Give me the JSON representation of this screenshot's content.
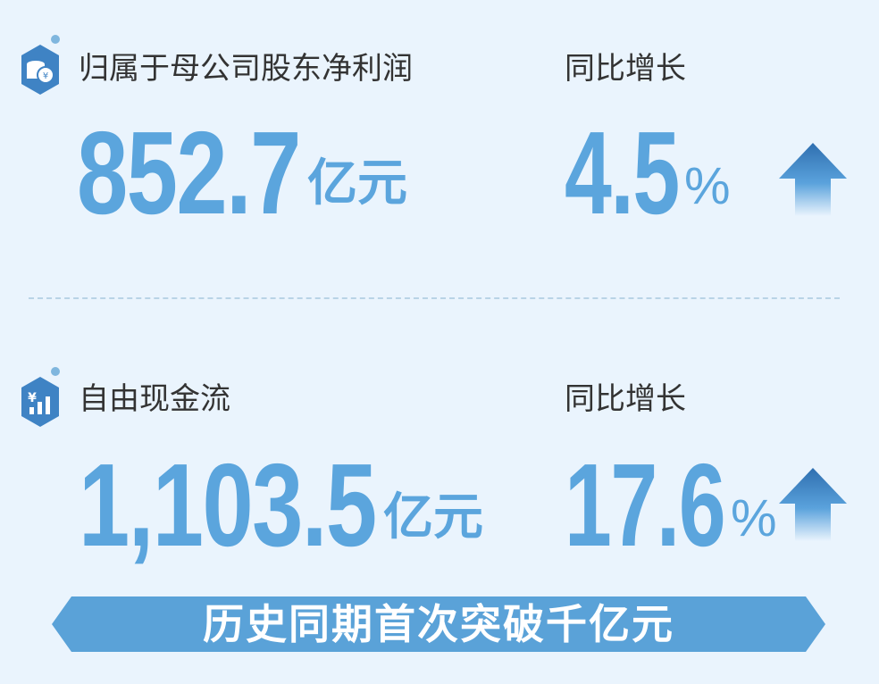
{
  "sections": [
    {
      "icon": "coins-yen-icon",
      "title": "归属于母公司股东净利润",
      "value": "852.7",
      "unit": "亿元",
      "growth_label": "同比增长",
      "growth_value": "4.5",
      "growth_unit": "%",
      "trend": "up"
    },
    {
      "icon": "yen-bar-chart-icon",
      "title": "自由现金流",
      "value": "1,103.5",
      "unit": "亿元",
      "growth_label": "同比增长",
      "growth_value": "17.6",
      "growth_unit": "%",
      "trend": "up"
    }
  ],
  "banner": {
    "text": "历史同期首次突破千亿元"
  },
  "colors": {
    "accent": "#5ba5dd",
    "background": "#eaf4fd",
    "icon": "#3f83c4"
  }
}
